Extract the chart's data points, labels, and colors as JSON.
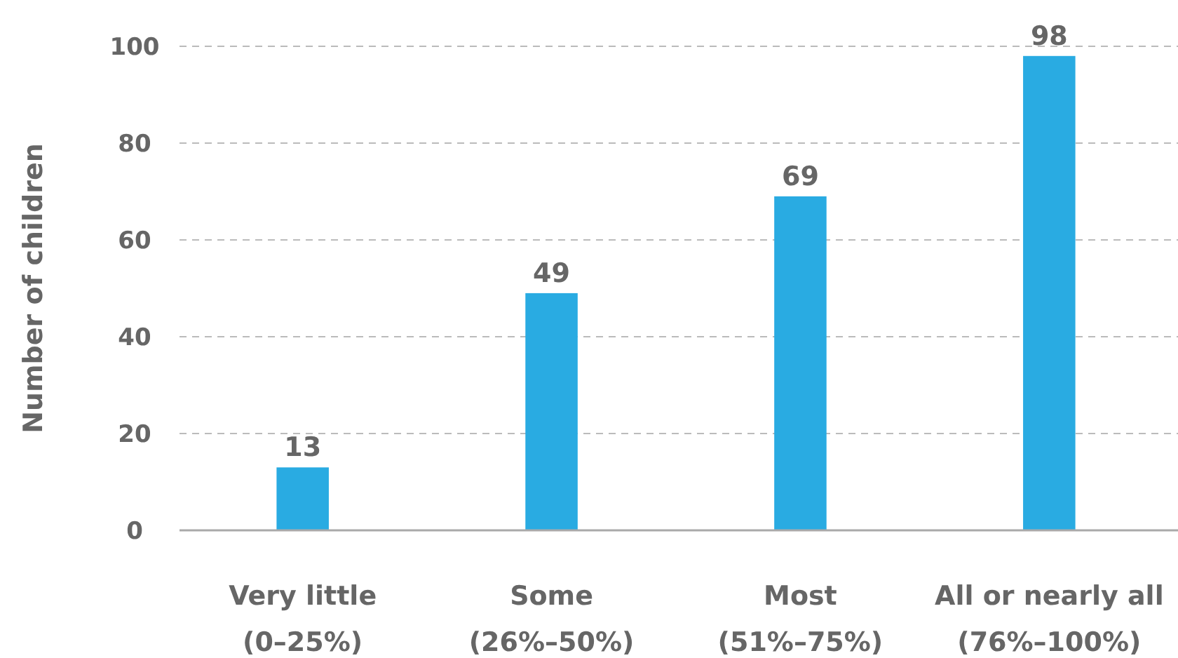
{
  "chart_data": {
    "type": "bar",
    "ylabel": "Number of children",
    "categories": [
      "Very little\n(0–25%)",
      "Some\n(26%–50%)",
      "Most\n(51%–75%)",
      "All or nearly all\n(76%–100%)"
    ],
    "values": [
      13,
      49,
      69,
      98
    ],
    "color": "#29abe2",
    "ylim": [
      0,
      100
    ],
    "yticks": [
      0,
      20,
      40,
      60,
      80,
      100
    ],
    "grid": "y",
    "data_labels": true
  }
}
